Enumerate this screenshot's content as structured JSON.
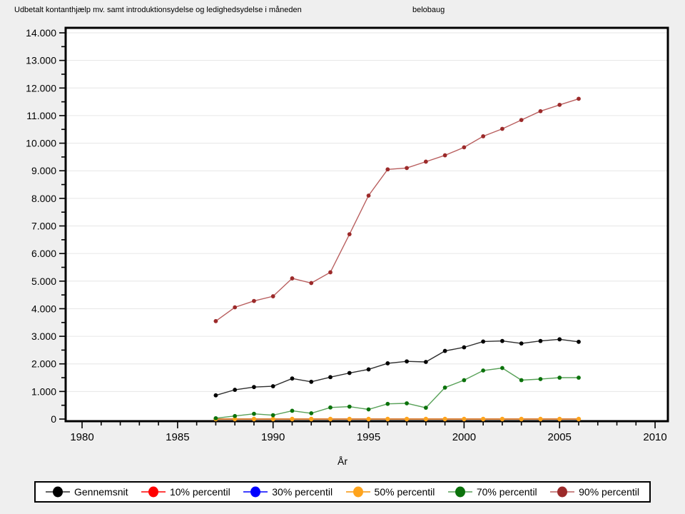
{
  "header": {
    "right_label": "belobaug"
  },
  "colors": {
    "page_bg": "#efefef",
    "plot_bg": "#ffffff",
    "grid": "#e6e6e6",
    "frame": "#000000"
  },
  "chart_data": {
    "type": "line",
    "title": "Udbetalt kontanthjælp mv. samt introduktionsydelse og ledighedsydelse i måneden",
    "xlabel": "År",
    "ylabel": "",
    "xlim": [
      1979.14,
      2010.67
    ],
    "ylim": [
      0,
      14000
    ],
    "x_major_tick_step": 5,
    "x_minor_tick_step": 1,
    "y_major_tick_step": 1000,
    "y_minor_tick_step": 500,
    "x_major_ticks": [
      1980,
      1985,
      1990,
      1995,
      2000,
      2005,
      2010
    ],
    "grid": "horizontal-major",
    "legend_position": "bottom",
    "x": [
      1987,
      1988,
      1989,
      1990,
      1991,
      1992,
      1993,
      1994,
      1995,
      1996,
      1997,
      1998,
      1999,
      2000,
      2001,
      2002,
      2003,
      2004,
      2005,
      2006
    ],
    "series": [
      {
        "name": "Gennemsnit",
        "marker_color": "#000000",
        "line_color": "#2e2e2e",
        "values": [
          860,
          1060,
          1160,
          1190,
          1470,
          1350,
          1520,
          1670,
          1800,
          2020,
          2090,
          2070,
          2470,
          2600,
          2810,
          2830,
          2740,
          2830,
          2890,
          2800
        ]
      },
      {
        "name": "10% percentil",
        "marker_color": "#ff0000",
        "line_color": "#ff0000",
        "values": [
          0,
          0,
          0,
          0,
          0,
          0,
          0,
          0,
          0,
          0,
          0,
          0,
          0,
          0,
          0,
          0,
          0,
          0,
          0,
          0
        ]
      },
      {
        "name": "30% percentil",
        "marker_color": "#0000ff",
        "line_color": "#0000ff",
        "values": [
          0,
          0,
          0,
          0,
          0,
          0,
          0,
          0,
          0,
          0,
          0,
          0,
          0,
          0,
          0,
          0,
          0,
          0,
          0,
          0
        ]
      },
      {
        "name": "50% percentil",
        "marker_color": "#ffa41c",
        "line_color": "#f59308",
        "values": [
          0,
          0,
          0,
          0,
          0,
          0,
          0,
          0,
          0,
          0,
          0,
          0,
          0,
          0,
          0,
          0,
          0,
          0,
          0,
          0
        ]
      },
      {
        "name": "70% percentil",
        "marker_color": "#0b720b",
        "line_color": "#58a158",
        "values": [
          30,
          110,
          190,
          140,
          300,
          210,
          420,
          450,
          350,
          550,
          570,
          410,
          1140,
          1410,
          1760,
          1850,
          1410,
          1450,
          1500,
          1500
        ]
      },
      {
        "name": "90% percentil",
        "marker_color": "#9c2a2a",
        "line_color": "#b95f5f",
        "values": [
          3550,
          4050,
          4280,
          4450,
          5100,
          4930,
          5320,
          6700,
          8100,
          9050,
          9100,
          9330,
          9560,
          9850,
          10250,
          10520,
          10840,
          11160,
          11390,
          11610
        ]
      }
    ]
  }
}
